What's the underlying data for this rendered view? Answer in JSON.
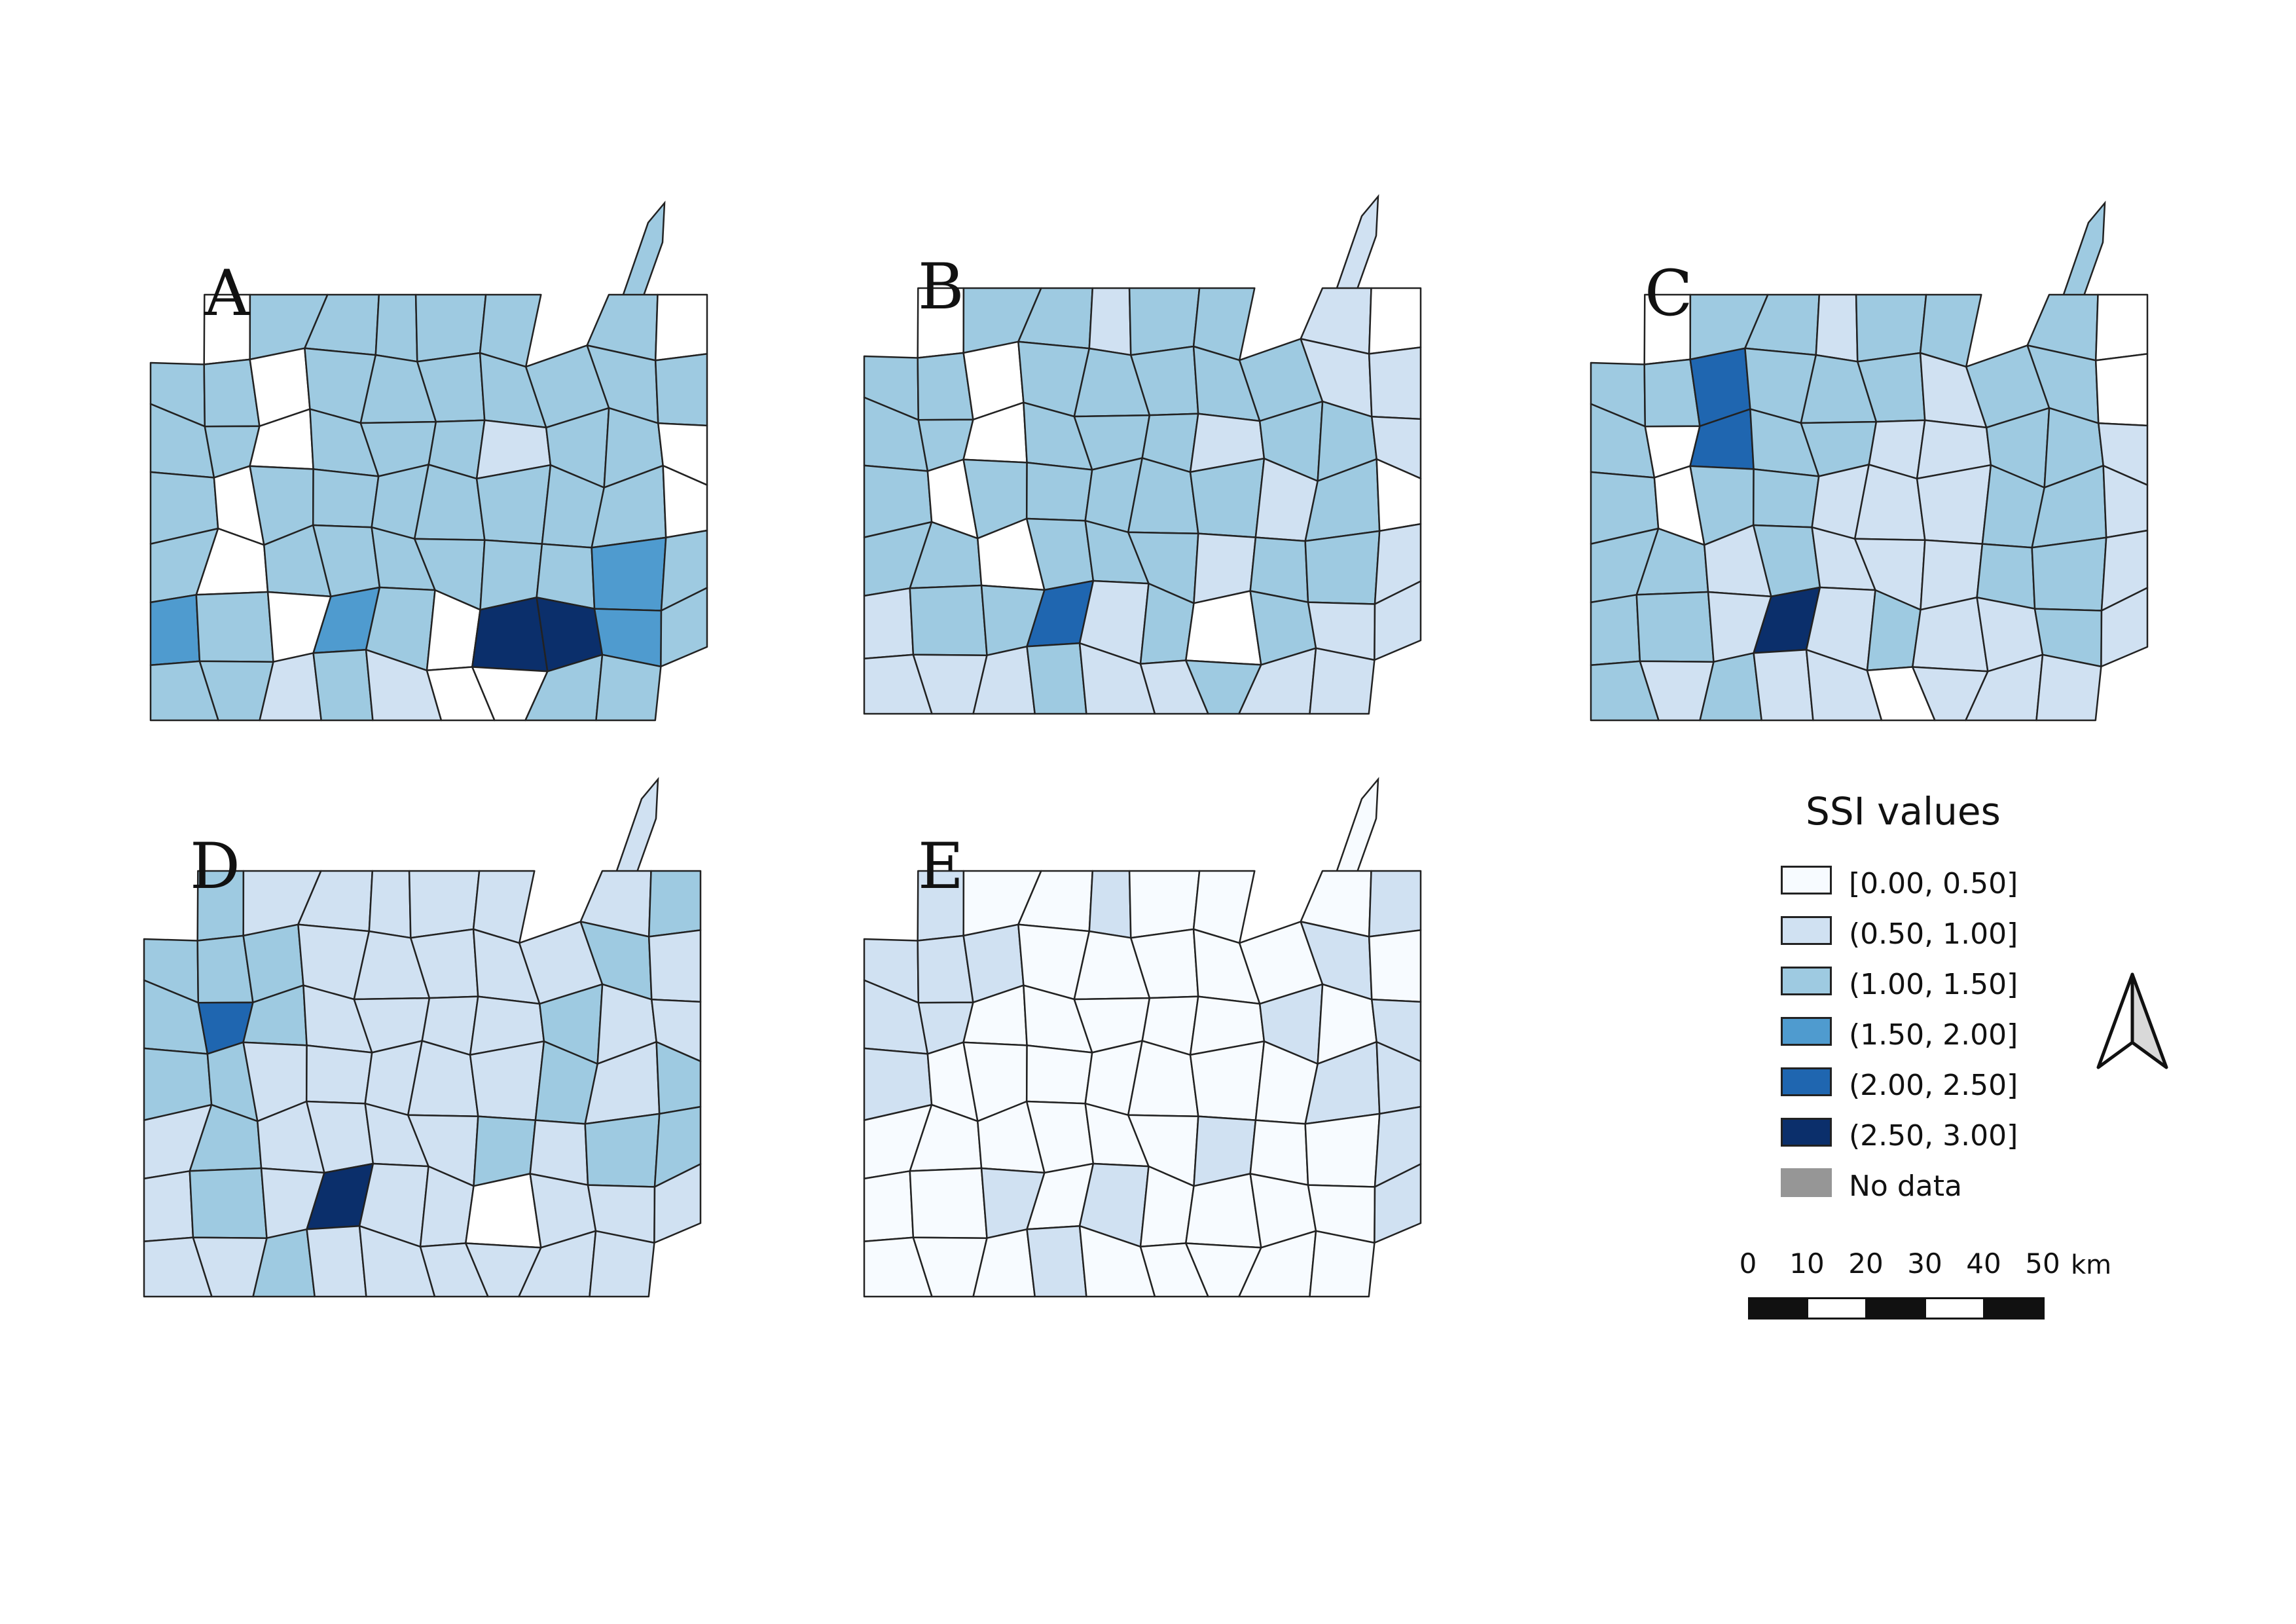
{
  "legend": {
    "title": "SSI values",
    "classes": [
      {
        "label": "[0.00, 0.50]",
        "color": "#f7fbff"
      },
      {
        "label": "(0.50, 1.00]",
        "color": "#d0e1f2"
      },
      {
        "label": "(1.00, 1.50]",
        "color": "#9ecae1"
      },
      {
        "label": "(1.50, 2.00]",
        "color": "#4f9bcf"
      },
      {
        "label": "(2.00, 2.50]",
        "color": "#1f66b0"
      },
      {
        "label": "(2.50, 3.00]",
        "color": "#0b2f6b"
      },
      {
        "label": "No data",
        "color": "#969696"
      }
    ]
  },
  "scale_bar": {
    "ticks": [
      "0",
      "10",
      "20",
      "30",
      "40",
      "50"
    ],
    "unit": "km"
  },
  "north_arrow": {
    "icon": "north-arrow-icon"
  },
  "maps": [
    {
      "label": "A",
      "classes": [
        [
          2,
          7,
          2,
          2,
          2,
          2,
          2,
          2,
          2,
          7
        ],
        [
          2,
          2,
          7,
          2,
          2,
          2,
          2,
          2,
          2,
          2
        ],
        [
          2,
          2,
          7,
          2,
          2,
          2,
          1,
          2,
          2,
          7
        ],
        [
          2,
          7,
          2,
          2,
          2,
          2,
          2,
          2,
          2,
          7
        ],
        [
          2,
          7,
          2,
          2,
          2,
          2,
          2,
          2,
          3,
          2
        ],
        [
          3,
          2,
          7,
          3,
          2,
          7,
          5,
          5,
          3,
          2
        ],
        [
          2,
          2,
          1,
          2,
          1,
          7,
          7,
          2,
          2,
          2
        ]
      ]
    },
    {
      "label": "B",
      "classes": [
        [
          2,
          7,
          2,
          2,
          1,
          2,
          2,
          1,
          1,
          7
        ],
        [
          2,
          2,
          7,
          2,
          2,
          2,
          2,
          2,
          1,
          1
        ],
        [
          2,
          2,
          7,
          2,
          2,
          2,
          1,
          2,
          2,
          1
        ],
        [
          2,
          7,
          2,
          2,
          2,
          2,
          2,
          1,
          2,
          7
        ],
        [
          2,
          2,
          7,
          2,
          2,
          2,
          1,
          2,
          2,
          1
        ],
        [
          1,
          2,
          2,
          4,
          1,
          2,
          7,
          2,
          1,
          1
        ],
        [
          1,
          1,
          1,
          2,
          1,
          1,
          2,
          1,
          1,
          1
        ]
      ]
    },
    {
      "label": "C",
      "classes": [
        [
          2,
          7,
          2,
          2,
          1,
          2,
          2,
          1,
          2,
          7
        ],
        [
          2,
          2,
          4,
          2,
          2,
          2,
          1,
          2,
          2,
          7
        ],
        [
          2,
          7,
          4,
          2,
          2,
          1,
          1,
          2,
          2,
          1
        ],
        [
          2,
          7,
          2,
          2,
          1,
          1,
          1,
          2,
          2,
          1
        ],
        [
          2,
          2,
          1,
          2,
          1,
          1,
          1,
          2,
          2,
          1
        ],
        [
          2,
          2,
          1,
          5,
          1,
          2,
          1,
          1,
          2,
          1
        ],
        [
          2,
          1,
          2,
          1,
          1,
          7,
          1,
          1,
          1,
          1
        ]
      ]
    },
    {
      "label": "D",
      "classes": [
        [
          2,
          2,
          1,
          1,
          1,
          1,
          1,
          1,
          1,
          2
        ],
        [
          2,
          2,
          2,
          1,
          1,
          1,
          1,
          1,
          2,
          1
        ],
        [
          2,
          4,
          2,
          1,
          1,
          1,
          1,
          2,
          1,
          1
        ],
        [
          2,
          2,
          1,
          1,
          1,
          1,
          1,
          2,
          1,
          2
        ],
        [
          1,
          2,
          1,
          1,
          1,
          1,
          2,
          1,
          2,
          2
        ],
        [
          1,
          2,
          1,
          5,
          1,
          1,
          7,
          1,
          1,
          1
        ],
        [
          1,
          1,
          2,
          1,
          1,
          1,
          1,
          1,
          1,
          1
        ]
      ]
    },
    {
      "label": "E",
      "classes": [
        [
          1,
          1,
          0,
          0,
          1,
          0,
          0,
          0,
          0,
          1
        ],
        [
          1,
          1,
          1,
          0,
          0,
          0,
          0,
          0,
          1,
          0
        ],
        [
          1,
          1,
          0,
          0,
          0,
          0,
          0,
          1,
          0,
          1
        ],
        [
          1,
          0,
          0,
          0,
          0,
          0,
          0,
          0,
          1,
          1
        ],
        [
          0,
          0,
          0,
          0,
          0,
          0,
          1,
          0,
          0,
          1
        ],
        [
          0,
          0,
          1,
          0,
          1,
          0,
          0,
          0,
          0,
          1
        ],
        [
          0,
          0,
          0,
          1,
          0,
          0,
          0,
          0,
          0,
          0
        ]
      ]
    }
  ]
}
